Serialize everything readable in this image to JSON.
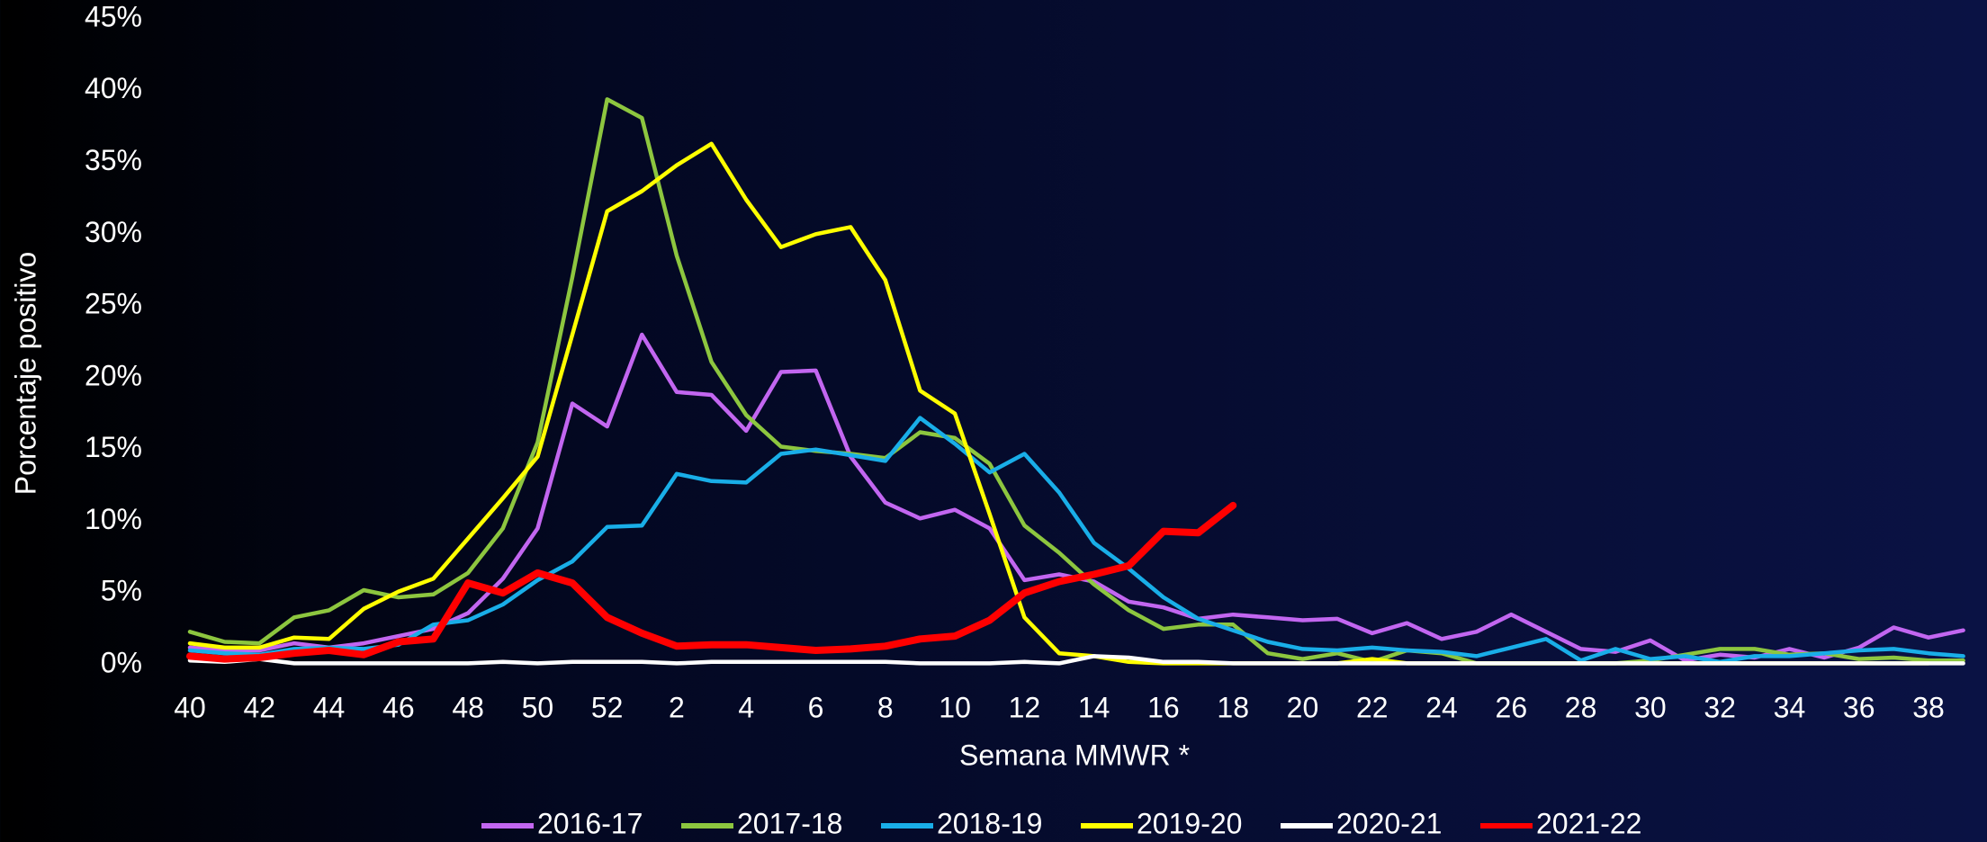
{
  "chart_data": {
    "type": "line",
    "x_label": "Semana MMWR *",
    "y_label": "Porcentaje positivo",
    "categories": [
      40,
      null,
      42,
      null,
      44,
      null,
      46,
      null,
      48,
      null,
      50,
      null,
      52,
      null,
      2,
      null,
      4,
      null,
      6,
      null,
      8,
      null,
      10,
      null,
      12,
      null,
      14,
      null,
      16,
      null,
      18,
      null,
      20,
      null,
      22,
      null,
      24,
      null,
      26,
      null,
      28,
      null,
      30,
      null,
      32,
      null,
      34,
      null,
      36,
      null,
      38,
      null
    ],
    "ylim": [
      0,
      45
    ],
    "yticks": [
      {
        "value": 0,
        "label": "0%"
      },
      {
        "value": 5,
        "label": "5%"
      },
      {
        "value": 10,
        "label": "10%"
      },
      {
        "value": 15,
        "label": "15%"
      },
      {
        "value": 20,
        "label": "20%"
      },
      {
        "value": 25,
        "label": "25%"
      },
      {
        "value": 30,
        "label": "30%"
      },
      {
        "value": 35,
        "label": "35%"
      },
      {
        "value": 40,
        "label": "40%"
      },
      {
        "value": 45,
        "label": "45%"
      }
    ],
    "grid": false,
    "legend": "bottom",
    "series": [
      {
        "name": "2016-17",
        "color": "#c266f0",
        "values": [
          1.2,
          1.0,
          1.0,
          1.5,
          1.2,
          1.5,
          2.0,
          2.5,
          3.6,
          6.0,
          9.5,
          18.2,
          16.6,
          23.0,
          19.0,
          18.8,
          16.3,
          20.4,
          20.5,
          14.5,
          11.3,
          10.2,
          10.8,
          9.5,
          5.9,
          6.3,
          5.8,
          4.4,
          4.0,
          3.2,
          3.5,
          3.3,
          3.1,
          3.2,
          2.2,
          2.9,
          1.8,
          2.3,
          3.5,
          2.3,
          1.1,
          0.9,
          1.7,
          0.3,
          0.7,
          0.5,
          1.1,
          0.5,
          1.2,
          2.6,
          1.9,
          2.4
        ]
      },
      {
        "name": "2017-18",
        "color": "#8dc63f",
        "values": [
          2.3,
          1.6,
          1.5,
          3.3,
          3.8,
          5.2,
          4.7,
          4.9,
          6.4,
          9.5,
          15.5,
          27.0,
          39.4,
          38.1,
          28.5,
          21.1,
          17.4,
          15.2,
          14.9,
          14.7,
          14.4,
          16.2,
          15.8,
          14.0,
          9.7,
          7.8,
          5.6,
          3.8,
          2.5,
          2.8,
          2.8,
          0.8,
          0.4,
          0.8,
          0.2,
          1.0,
          0.8,
          0.1,
          0.1,
          0.1,
          0.1,
          0.1,
          0.3,
          0.7,
          1.1,
          1.1,
          0.7,
          0.8,
          0.4,
          0.5,
          0.3,
          0.3
        ]
      },
      {
        "name": "2018-19",
        "color": "#19aee8",
        "values": [
          1.0,
          0.8,
          0.7,
          1.1,
          1.2,
          1.1,
          1.4,
          2.8,
          3.1,
          4.2,
          5.9,
          7.2,
          9.6,
          9.7,
          13.3,
          12.8,
          12.7,
          14.7,
          15.0,
          14.6,
          14.2,
          17.2,
          15.4,
          13.4,
          14.7,
          12.0,
          8.5,
          6.7,
          4.7,
          3.2,
          2.4,
          1.6,
          1.1,
          1.0,
          1.2,
          1.0,
          0.9,
          0.6,
          1.2,
          1.8,
          0.3,
          1.1,
          0.4,
          0.6,
          0.2,
          0.6,
          0.6,
          0.8,
          1.0,
          1.1,
          0.8,
          0.6
        ]
      },
      {
        "name": "2019-20",
        "color": "#ffff00",
        "values": [
          1.5,
          1.2,
          1.2,
          1.9,
          1.8,
          3.9,
          5.1,
          6.0,
          8.8,
          11.6,
          14.5,
          23.0,
          31.6,
          33.0,
          34.8,
          36.3,
          32.4,
          29.1,
          30.0,
          30.5,
          26.8,
          19.1,
          17.5,
          10.5,
          3.3,
          0.8,
          0.6,
          0.2,
          0.1,
          0.1,
          0.1,
          0.1,
          0.1,
          0.1,
          0.4,
          0.1,
          0.1,
          0.1,
          0.1,
          0.1,
          0.1,
          0.1,
          0.1,
          0.1,
          0.1,
          0.1,
          0.1,
          0.1,
          0.1,
          0.1,
          0.1,
          null
        ]
      },
      {
        "name": "2020-21",
        "color": "#ffffff",
        "values": [
          0.3,
          0.2,
          0.4,
          0.1,
          0.1,
          0.1,
          0.1,
          0.1,
          0.1,
          0.2,
          0.1,
          0.2,
          0.2,
          0.2,
          0.1,
          0.2,
          0.2,
          0.2,
          0.2,
          0.2,
          0.2,
          0.1,
          0.1,
          0.1,
          0.2,
          0.1,
          0.6,
          0.5,
          0.2,
          0.2,
          0.1,
          0.1,
          0.1,
          0.1,
          0.1,
          0.1,
          0.1,
          0.1,
          0.1,
          0.1,
          0.1,
          0.1,
          0.1,
          0.1,
          0.1,
          0.1,
          0.1,
          0.1,
          0.1,
          0.1,
          0.1,
          0.1
        ]
      },
      {
        "name": "2021-22",
        "color": "#ff0000",
        "values": [
          0.6,
          0.4,
          0.5,
          0.8,
          1.0,
          0.7,
          1.6,
          1.8,
          5.7,
          5.0,
          6.4,
          5.7,
          3.3,
          2.2,
          1.3,
          1.4,
          1.4,
          1.2,
          1.0,
          1.1,
          1.3,
          1.8,
          2.0,
          3.1,
          5.0,
          5.8,
          6.3,
          6.9,
          9.3,
          9.2,
          11.1,
          null,
          null,
          null,
          null,
          null,
          null,
          null,
          null,
          null,
          null,
          null,
          null,
          null,
          null,
          null,
          null,
          null,
          null,
          null,
          null,
          null
        ]
      }
    ]
  }
}
